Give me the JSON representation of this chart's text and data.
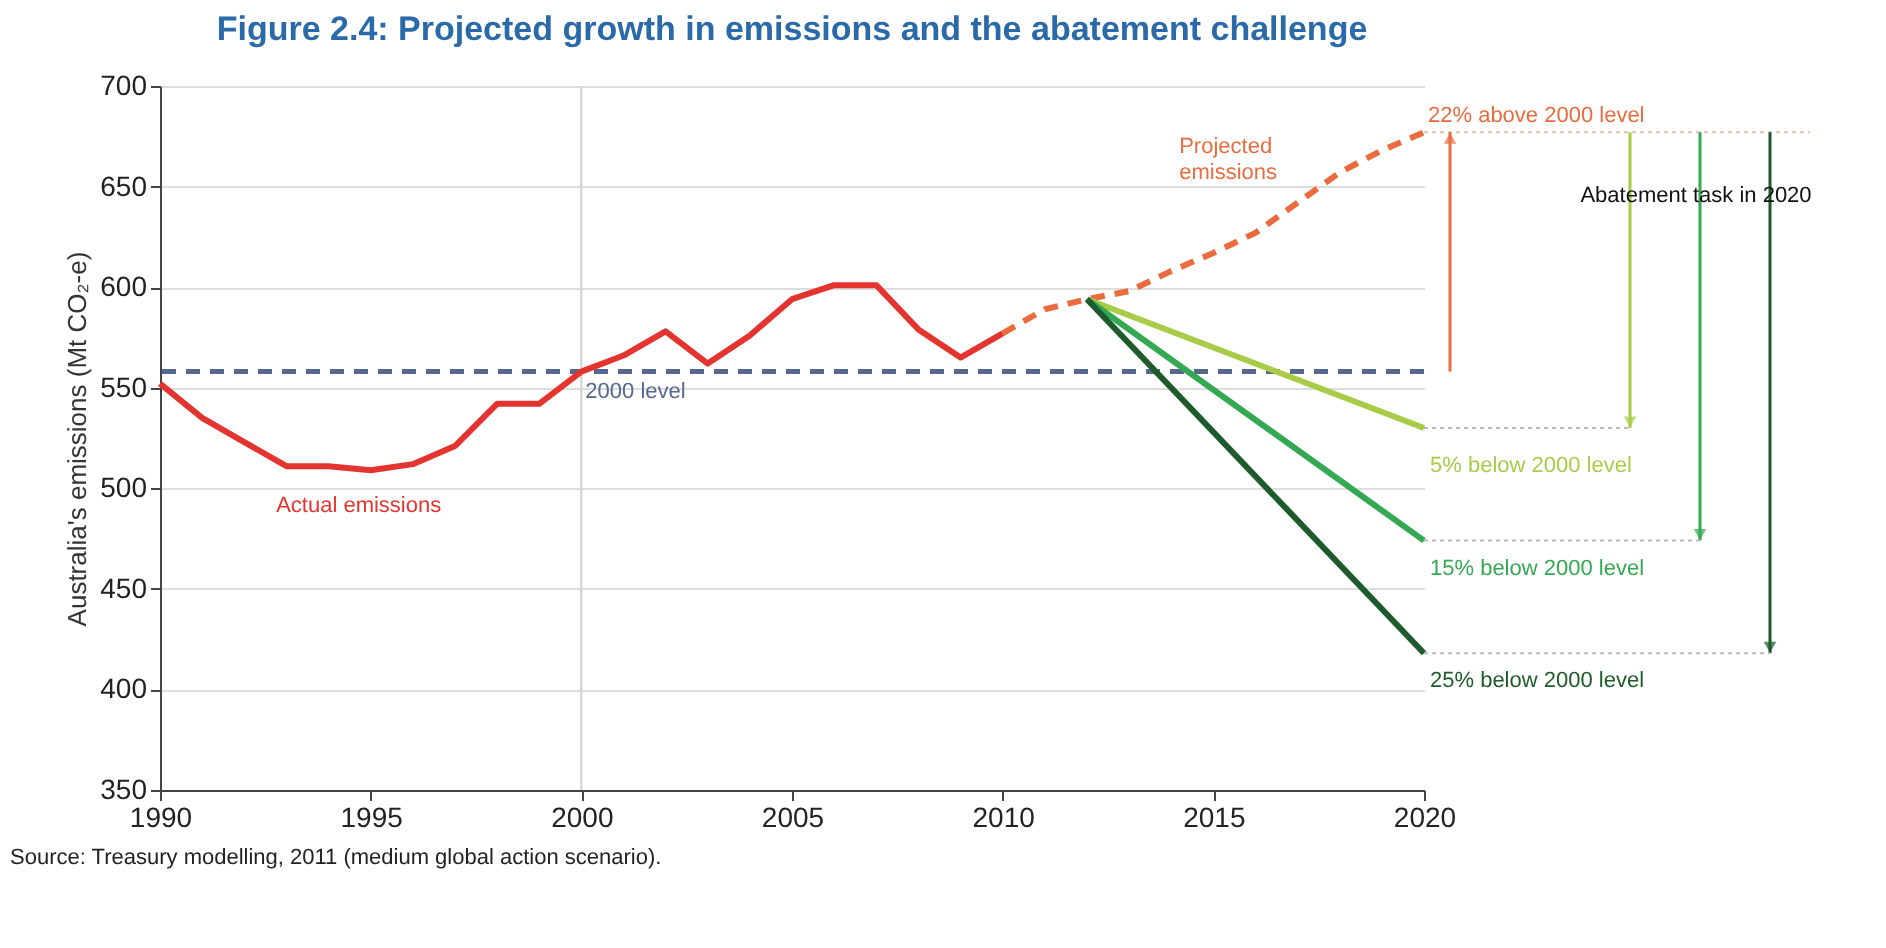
{
  "chart_data": {
    "type": "line",
    "title": "Figure 2.4: Projected growth in emissions and the abatement challenge",
    "ylabel": "Australia's emissions (Mt CO₂-e)",
    "xlim": [
      1990,
      2020
    ],
    "xticks": [
      1990,
      1995,
      2000,
      2005,
      2010,
      2015,
      2020
    ],
    "ylim": [
      350,
      700
    ],
    "yticks": [
      350,
      400,
      450,
      500,
      550,
      600,
      650,
      700
    ],
    "grid": "y",
    "legend": false,
    "marker": "none",
    "series": [
      {
        "name": "Actual emissions",
        "color": "#e3342f",
        "x": [
          1990,
          1991,
          1992,
          1993,
          1994,
          1995,
          1996,
          1997,
          1998,
          1999,
          2000,
          2001,
          2002,
          2003,
          2004,
          2005,
          2006,
          2007,
          2008,
          2009,
          2010
        ],
        "values": [
          552,
          535,
          523,
          511,
          511,
          509,
          512,
          521,
          542,
          542,
          558,
          566,
          578,
          562,
          576,
          594,
          601,
          601,
          579,
          565,
          577
        ]
      },
      {
        "name": "Projected emissions",
        "color": "#ea6b3e",
        "line_style": "dashed",
        "x": [
          2010,
          2011,
          2012,
          2013,
          2014,
          2015,
          2016,
          2017,
          2018,
          2019,
          2020
        ],
        "values": [
          577,
          589,
          594,
          598,
          608,
          617,
          627,
          642,
          657,
          668,
          677
        ]
      },
      {
        "name": "5% below 2000 level",
        "color": "#a8cc48",
        "x": [
          2012,
          2020
        ],
        "values": [
          594,
          530
        ]
      },
      {
        "name": "15% below 2000 level",
        "color": "#35a853",
        "x": [
          2012,
          2020
        ],
        "values": [
          594,
          474
        ]
      },
      {
        "name": "25% below 2000 level",
        "color": "#1e5a2c",
        "x": [
          2012,
          2020
        ],
        "values": [
          594,
          418
        ]
      }
    ],
    "ref_lines": [
      {
        "axis": "y",
        "value": 558,
        "label": "2000 level",
        "color": "#566890",
        "line_style": "dashed"
      },
      {
        "axis": "x",
        "value": 2000,
        "color": "#d0d0d0"
      }
    ],
    "annotations": [
      {
        "text": "22% above 2000 level",
        "x": 2020,
        "y": 677
      },
      "Abatement task in 2020",
      "Source: Treasury modelling, 2011 (medium global action scenario)."
    ]
  }
}
